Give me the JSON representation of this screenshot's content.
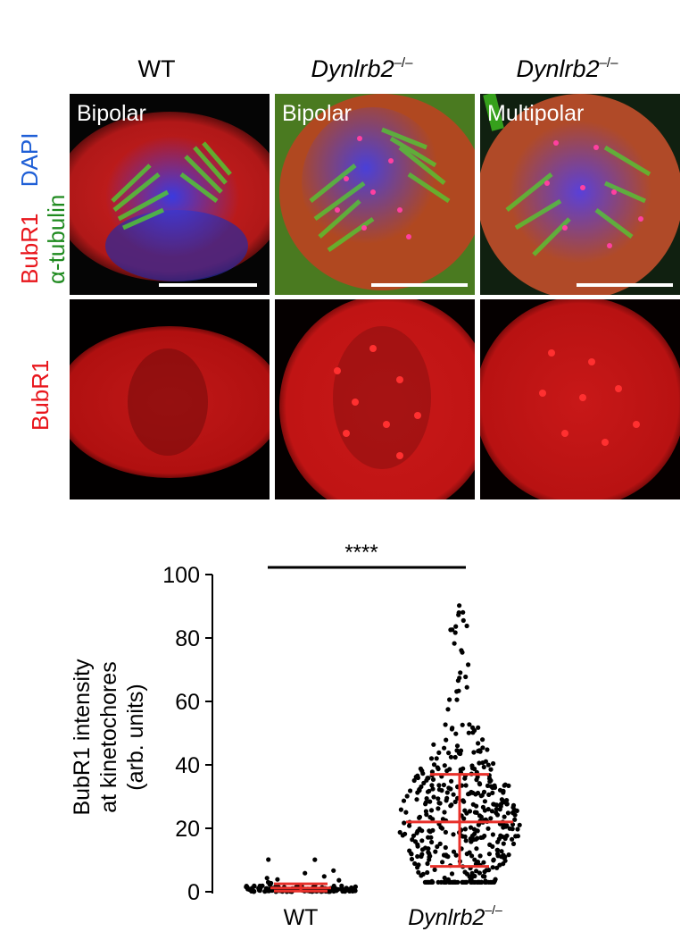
{
  "figure": {
    "columns": [
      {
        "title": "WT",
        "title_sup": ""
      },
      {
        "title": "Dynlrb2",
        "title_sup": "–/–"
      },
      {
        "title": "Dynlrb2",
        "title_sup": "–/–"
      }
    ],
    "top_row_labels": [
      "Bipolar",
      "Bipolar",
      "Multipolar"
    ],
    "row_labels": {
      "merge": [
        {
          "text": "BubR1",
          "color": "#e8151b"
        },
        {
          "text": "DAPI",
          "color": "#1f5fd6"
        },
        {
          "text": "α-tubulin",
          "color": "#1f8a1f"
        }
      ],
      "single": {
        "text": "BubR1",
        "color": "#e8151b"
      }
    },
    "colors": {
      "red": "#e8151b",
      "blue": "#3030d0",
      "green": "#40c020"
    }
  },
  "chart_data": {
    "type": "scatter",
    "significance": "****",
    "ylabel": [
      "BubR1 intensity",
      "at kinetochores",
      "(arb. units)"
    ],
    "ylim": [
      0,
      100
    ],
    "yticks": [
      0,
      20,
      40,
      60,
      80,
      100
    ],
    "categories": [
      "WT",
      "Dynlrb2"
    ],
    "category_sup": [
      "",
      "–/–"
    ],
    "series": [
      {
        "category": "WT",
        "mean": 1.2,
        "sd_low": 0.2,
        "sd_high": 2.5,
        "n": 160,
        "min": 0,
        "max": 12
      },
      {
        "category": "Dynlrb2",
        "mean": 22,
        "sd_low": 8,
        "sd_high": 37,
        "n": 450,
        "min": 3,
        "max": 92
      }
    ],
    "marker_color": "#000000",
    "summary_color": "#e8302a"
  }
}
